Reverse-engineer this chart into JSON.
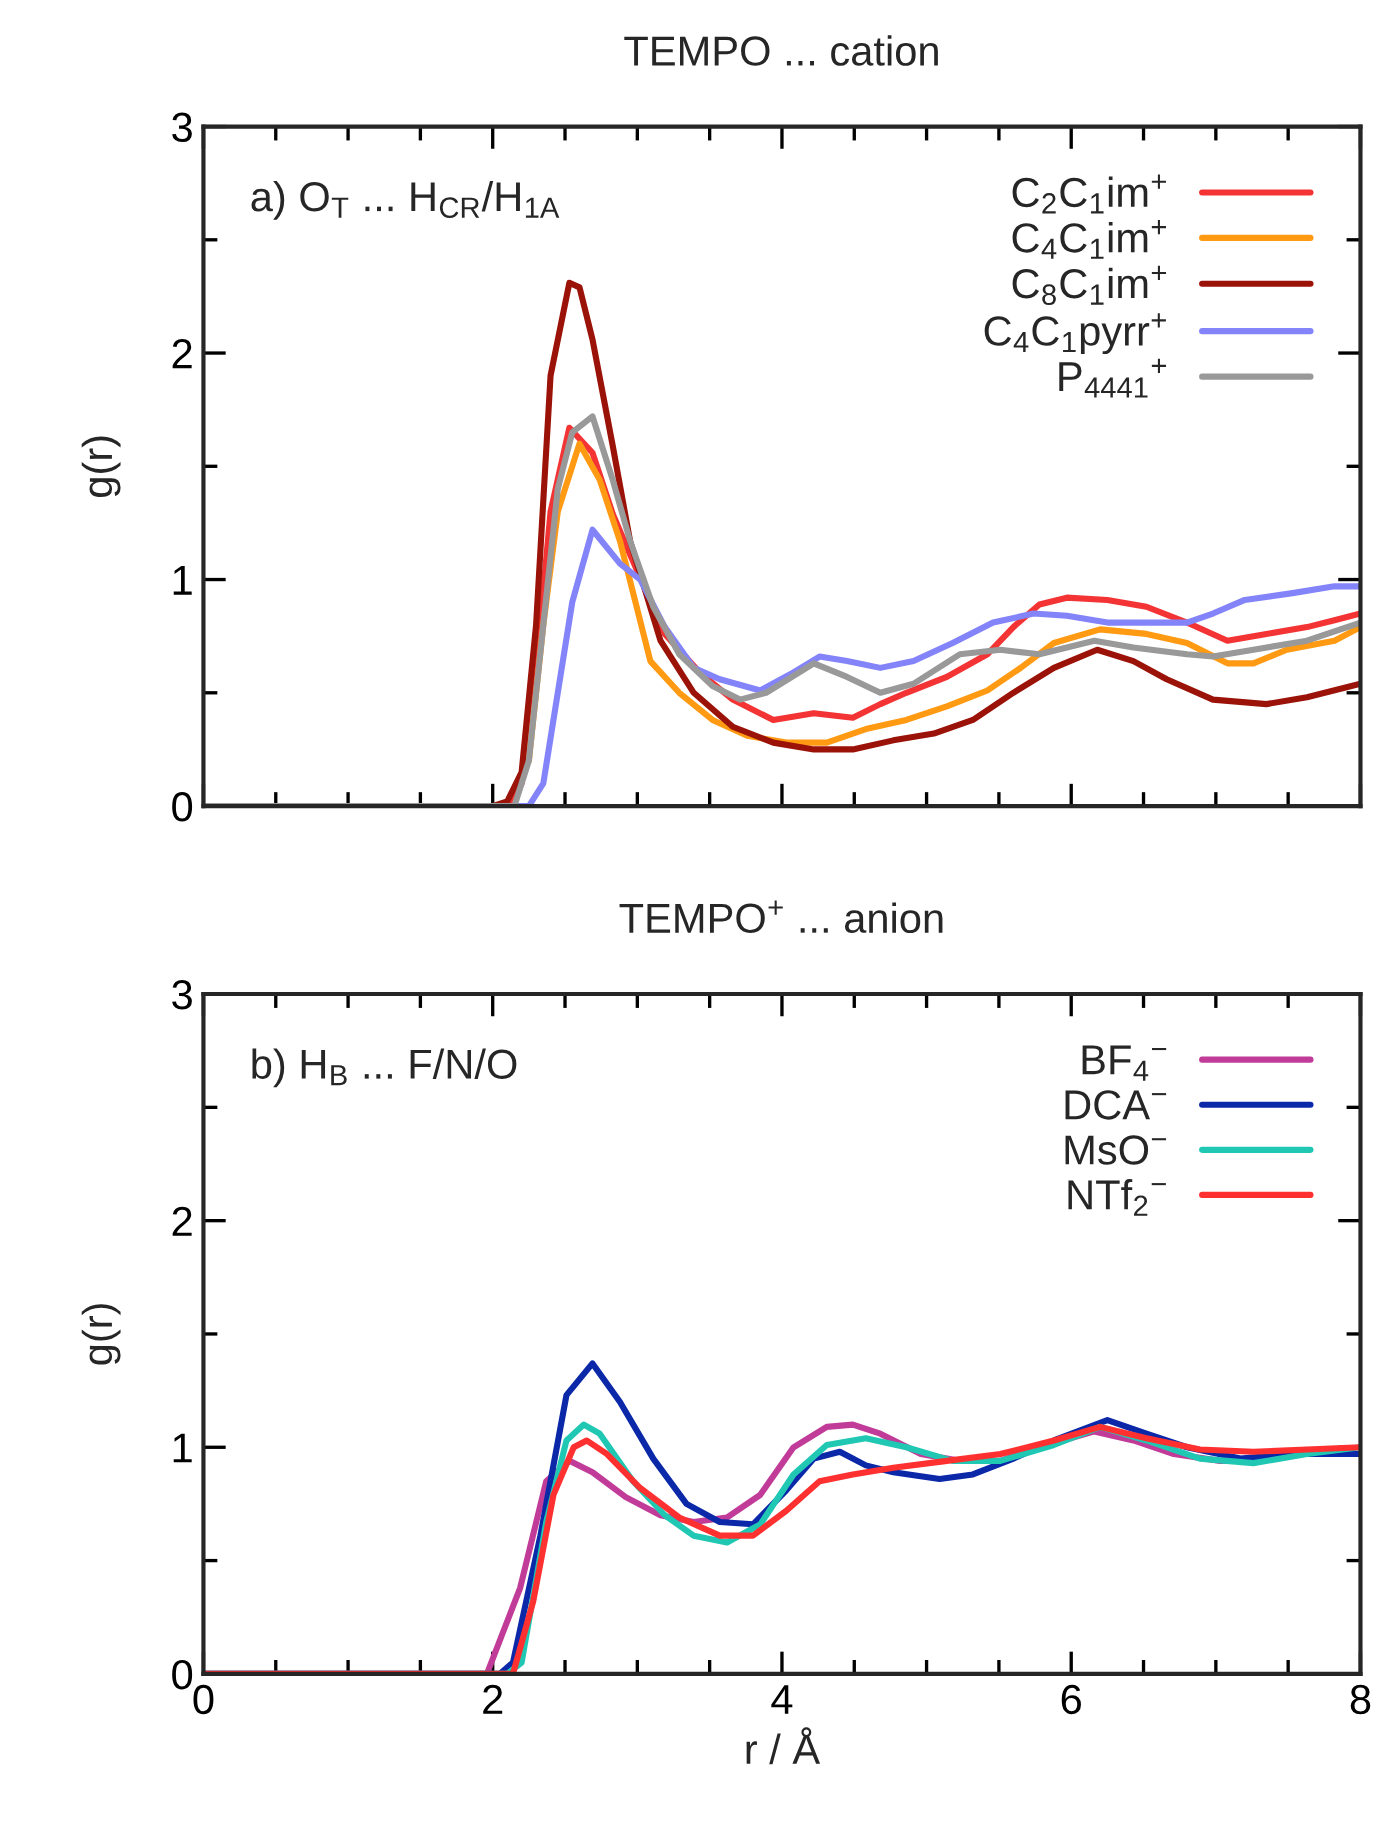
{
  "chart_data": [
    {
      "type": "line",
      "title": "TEMPO ... cation",
      "ylabel": "g(r)",
      "annotations": [
        "a) O$_{T}$ ... H$_{CR}$/H$_{1A}$"
      ],
      "xlim": [
        0,
        8
      ],
      "ylim": [
        0,
        3
      ],
      "xticks": [
        0,
        {
          "value": 0.5,
          "label": null
        },
        {
          "value": 1,
          "label": null
        },
        {
          "value": 1.5,
          "label": null
        },
        2,
        {
          "value": 2.5,
          "label": null
        },
        {
          "value": 3,
          "label": null
        },
        {
          "value": 3.5,
          "label": null
        },
        4,
        {
          "value": 4.5,
          "label": null
        },
        {
          "value": 5,
          "label": null
        },
        {
          "value": 5.5,
          "label": null
        },
        6,
        {
          "value": 6.5,
          "label": null
        },
        {
          "value": 7,
          "label": null
        },
        {
          "value": 7.5,
          "label": null
        },
        8
      ],
      "yticks": [
        0,
        {
          "value": 0.5,
          "label": null
        },
        1,
        {
          "value": 1.5,
          "label": null
        },
        2,
        {
          "value": 2.5,
          "label": null
        },
        3
      ],
      "tick_labels": "y",
      "legend": "top right",
      "grid": false,
      "line_style": "solid",
      "series": [
        {
          "name": "C$_{2}$C$_{1}$im$^{+}$",
          "color": "#f43434",
          "x": [
            0,
            2.1,
            2.2,
            2.3,
            2.4,
            2.53,
            2.69,
            2.83,
            2.95,
            3.19,
            3.43,
            3.66,
            3.94,
            4.22,
            4.49,
            4.68,
            4.86,
            5.14,
            5.42,
            5.6,
            5.78,
            5.97,
            6.25,
            6.52,
            6.8,
            7.08,
            7.35,
            7.63,
            7.82,
            8
          ],
          "values": [
            0,
            0,
            0.1,
            0.6,
            1.3,
            1.67,
            1.56,
            1.29,
            1.11,
            0.76,
            0.59,
            0.47,
            0.38,
            0.41,
            0.39,
            0.45,
            0.5,
            0.57,
            0.67,
            0.79,
            0.89,
            0.92,
            0.91,
            0.88,
            0.81,
            0.73,
            0.76,
            0.79,
            0.82,
            0.85
          ]
        },
        {
          "name": "C$_{4}$C$_{1}$im$^{+}$",
          "color": "#ff9a12",
          "x": [
            2.25,
            2.35,
            2.45,
            2.6,
            2.74,
            2.88,
            3.09,
            3.29,
            3.52,
            3.76,
            4.03,
            4.31,
            4.58,
            4.86,
            5.14,
            5.42,
            5.65,
            5.88,
            6.2,
            6.52,
            6.8,
            7.08,
            7.26,
            7.49,
            7.82,
            8
          ],
          "values": [
            0.2,
            0.8,
            1.3,
            1.6,
            1.44,
            1.17,
            0.64,
            0.5,
            0.38,
            0.31,
            0.28,
            0.28,
            0.34,
            0.38,
            0.44,
            0.51,
            0.61,
            0.72,
            0.78,
            0.76,
            0.72,
            0.63,
            0.63,
            0.69,
            0.73,
            0.79
          ]
        },
        {
          "name": "C$_{8}$C$_{1}$im$^{+}$",
          "color": "#9b1208",
          "x": [
            0,
            2.0,
            2.1,
            2.2,
            2.3,
            2.4,
            2.53,
            2.6,
            2.69,
            2.83,
            2.95,
            3.16,
            3.39,
            3.66,
            3.94,
            4.22,
            4.49,
            4.77,
            5.05,
            5.32,
            5.6,
            5.88,
            6.18,
            6.43,
            6.66,
            6.98,
            7.35,
            7.63,
            8
          ],
          "values": [
            0,
            0,
            0.02,
            0.15,
            0.8,
            1.9,
            2.31,
            2.29,
            2.06,
            1.59,
            1.17,
            0.73,
            0.5,
            0.35,
            0.28,
            0.25,
            0.25,
            0.29,
            0.32,
            0.38,
            0.5,
            0.61,
            0.69,
            0.64,
            0.56,
            0.47,
            0.45,
            0.48,
            0.54
          ]
        },
        {
          "name": "C$_{4}$C$_{1}$pyrr$^{+}$",
          "color": "#8484fa",
          "x": [
            0,
            2.25,
            2.35,
            2.45,
            2.55,
            2.69,
            2.88,
            3.02,
            3.19,
            3.39,
            3.57,
            3.85,
            4.08,
            4.26,
            4.45,
            4.68,
            4.91,
            5.18,
            5.46,
            5.74,
            5.97,
            6.25,
            6.52,
            6.8,
            6.98,
            7.2,
            7.53,
            7.82,
            8
          ],
          "values": [
            0,
            0,
            0.1,
            0.5,
            0.9,
            1.22,
            1.07,
            1.0,
            0.79,
            0.61,
            0.56,
            0.51,
            0.59,
            0.66,
            0.64,
            0.61,
            0.64,
            0.72,
            0.81,
            0.85,
            0.84,
            0.81,
            0.81,
            0.81,
            0.85,
            0.91,
            0.94,
            0.97,
            0.97
          ]
        },
        {
          "name": "P$_{4441}$$^{+}$",
          "color": "#999999",
          "x": [
            0,
            2.15,
            2.25,
            2.35,
            2.45,
            2.55,
            2.69,
            2.83,
            2.95,
            3.11,
            3.29,
            3.52,
            3.71,
            3.89,
            4.22,
            4.45,
            4.68,
            4.91,
            5.23,
            5.51,
            5.78,
            6.16,
            6.43,
            6.8,
            6.98,
            7.26,
            7.63,
            8
          ],
          "values": [
            0,
            0,
            0.2,
            0.8,
            1.4,
            1.65,
            1.72,
            1.44,
            1.17,
            0.88,
            0.67,
            0.53,
            0.47,
            0.5,
            0.63,
            0.57,
            0.5,
            0.54,
            0.67,
            0.69,
            0.67,
            0.73,
            0.7,
            0.67,
            0.66,
            0.69,
            0.73,
            0.81
          ]
        }
      ]
    },
    {
      "type": "line",
      "title": "TEMPO$^{+}$ ... anion",
      "xlabel": "r / Å",
      "ylabel": "g(r)",
      "annotations": [
        "b) H$_{B}$ ... F/N/O"
      ],
      "xlim": [
        0,
        8
      ],
      "ylim": [
        0,
        3
      ],
      "xticks": [
        0,
        {
          "value": 0.5,
          "label": null
        },
        {
          "value": 1,
          "label": null
        },
        {
          "value": 1.5,
          "label": null
        },
        2,
        {
          "value": 2.5,
          "label": null
        },
        {
          "value": 3,
          "label": null
        },
        {
          "value": 3.5,
          "label": null
        },
        4,
        {
          "value": 4.5,
          "label": null
        },
        {
          "value": 5,
          "label": null
        },
        {
          "value": 5.5,
          "label": null
        },
        6,
        {
          "value": 6.5,
          "label": null
        },
        {
          "value": 7,
          "label": null
        },
        {
          "value": 7.5,
          "label": null
        },
        8
      ],
      "yticks": [
        0,
        {
          "value": 0.5,
          "label": null
        },
        1,
        {
          "value": 1.5,
          "label": null
        },
        2,
        {
          "value": 2.5,
          "label": null
        },
        3
      ],
      "legend": "top right",
      "grid": false,
      "line_style": "solid",
      "series": [
        {
          "name": "BF$_{4}$$^{−}$",
          "color": "#c03c98",
          "x": [
            0,
            1.96,
            2.19,
            2.37,
            2.53,
            2.69,
            2.92,
            3.16,
            3.39,
            3.62,
            3.85,
            4.08,
            4.31,
            4.49,
            4.68,
            4.96,
            5.23,
            5.51,
            5.78,
            6.16,
            6.43,
            6.71,
            7.03,
            7.35
          ],
          "values": [
            0,
            0,
            0.38,
            0.85,
            0.94,
            0.89,
            0.78,
            0.7,
            0.67,
            0.69,
            0.79,
            1.0,
            1.09,
            1.1,
            1.06,
            0.97,
            0.94,
            0.94,
            1.0,
            1.07,
            1.03,
            0.97,
            0.94,
            0.95
          ]
        },
        {
          "name": "DCA$^{−}$",
          "color": "#0a28a8",
          "x": [
            0,
            2.05,
            2.14,
            2.33,
            2.51,
            2.69,
            2.88,
            3.11,
            3.34,
            3.57,
            3.8,
            4.03,
            4.22,
            4.4,
            4.58,
            4.77,
            5.09,
            5.32,
            5.6,
            5.88,
            6.25,
            6.52,
            6.8,
            7.17,
            7.53,
            8
          ],
          "values": [
            0,
            0,
            0.05,
            0.61,
            1.23,
            1.37,
            1.2,
            0.95,
            0.75,
            0.67,
            0.66,
            0.81,
            0.95,
            0.98,
            0.92,
            0.89,
            0.86,
            0.88,
            0.95,
            1.03,
            1.12,
            1.06,
            1.0,
            0.95,
            0.97,
            0.97
          ]
        },
        {
          "name": "MsO$^{−}$",
          "color": "#20c8b4",
          "x": [
            0,
            2.1,
            2.2,
            2.37,
            2.51,
            2.63,
            2.74,
            2.97,
            3.19,
            3.39,
            3.62,
            3.85,
            4.08,
            4.31,
            4.58,
            4.86,
            5.18,
            5.51,
            5.88,
            6.2,
            6.52,
            6.89,
            7.26,
            7.63,
            8
          ],
          "values": [
            0,
            0,
            0.05,
            0.67,
            1.03,
            1.1,
            1.06,
            0.85,
            0.7,
            0.61,
            0.58,
            0.66,
            0.88,
            1.01,
            1.04,
            1.0,
            0.94,
            0.94,
            1.01,
            1.09,
            1.03,
            0.95,
            0.93,
            0.97,
            1.0
          ]
        },
        {
          "name": "NTf$_{2}$$^{−}$",
          "color": "#ff3030",
          "x": [
            0,
            2.14,
            2.28,
            2.42,
            2.56,
            2.65,
            2.79,
            3.02,
            3.29,
            3.57,
            3.8,
            4.03,
            4.26,
            4.49,
            4.77,
            5.14,
            5.51,
            5.88,
            6.2,
            6.52,
            6.89,
            7.26,
            7.63,
            8
          ],
          "values": [
            0,
            0,
            0.32,
            0.79,
            1.0,
            1.03,
            0.97,
            0.82,
            0.69,
            0.61,
            0.61,
            0.72,
            0.85,
            0.88,
            0.91,
            0.94,
            0.97,
            1.03,
            1.09,
            1.04,
            0.99,
            0.98,
            0.99,
            1.0
          ]
        }
      ]
    }
  ]
}
